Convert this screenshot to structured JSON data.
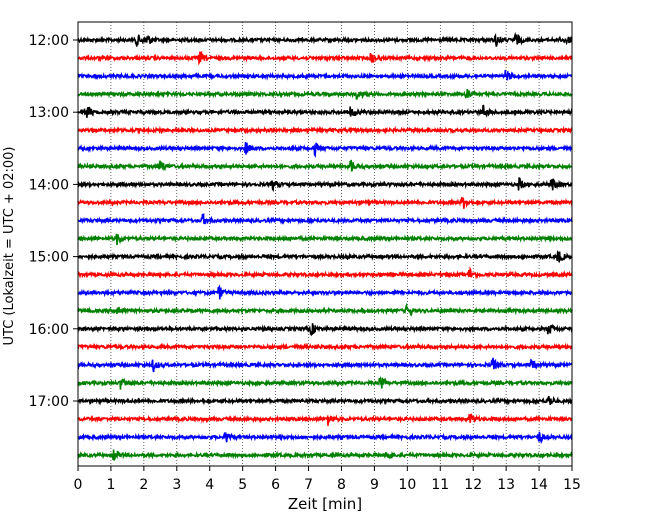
{
  "chart_data": {
    "type": "line",
    "title": "",
    "xlabel": "Zeit  [min]",
    "ylabel": "UTC (Lokalzeit = UTC + 02:00)",
    "xlim": [
      0,
      15
    ],
    "x_ticks": [
      0,
      1,
      2,
      3,
      4,
      5,
      6,
      7,
      8,
      9,
      10,
      11,
      12,
      13,
      14,
      15
    ],
    "x_tick_labels": [
      "0",
      "1",
      "2",
      "3",
      "4",
      "5",
      "6",
      "7",
      "8",
      "9",
      "10",
      "11",
      "12",
      "13",
      "14",
      "15"
    ],
    "y_tick_labels": [
      "12:00",
      "13:00",
      "14:00",
      "15:00",
      "16:00",
      "17:00"
    ],
    "grid": "vertical dotted",
    "legend": "none",
    "trace_interval_minutes": 15,
    "trace_colors": [
      "#000000",
      "#ff0000",
      "#0000ff",
      "#008000"
    ],
    "series": [
      {
        "start": "12:00",
        "color": "#000000",
        "events": [
          1.8,
          2.1,
          12.7,
          13.3,
          14.8
        ]
      },
      {
        "start": "12:15",
        "color": "#ff0000",
        "events": [
          3.7,
          8.9
        ]
      },
      {
        "start": "12:30",
        "color": "#0000ff",
        "events": [
          13.0
        ]
      },
      {
        "start": "12:45",
        "color": "#008000",
        "events": [
          8.5,
          11.8
        ]
      },
      {
        "start": "13:00",
        "color": "#000000",
        "events": [
          0.3,
          8.3,
          12.3
        ]
      },
      {
        "start": "13:15",
        "color": "#ff0000",
        "events": []
      },
      {
        "start": "13:30",
        "color": "#0000ff",
        "events": [
          5.1,
          7.2
        ]
      },
      {
        "start": "13:45",
        "color": "#008000",
        "events": [
          2.5,
          8.3
        ]
      },
      {
        "start": "14:00",
        "color": "#000000",
        "events": [
          5.9,
          13.4,
          14.4
        ]
      },
      {
        "start": "14:15",
        "color": "#ff0000",
        "events": [
          11.7
        ]
      },
      {
        "start": "14:30",
        "color": "#0000ff",
        "events": [
          3.8
        ]
      },
      {
        "start": "14:45",
        "color": "#008000",
        "events": [
          1.2
        ]
      },
      {
        "start": "15:00",
        "color": "#000000",
        "events": [
          14.6
        ]
      },
      {
        "start": "15:15",
        "color": "#ff0000",
        "events": [
          11.9
        ]
      },
      {
        "start": "15:30",
        "color": "#0000ff",
        "events": [
          4.3
        ]
      },
      {
        "start": "15:45",
        "color": "#008000",
        "events": [
          1.2,
          10.0
        ]
      },
      {
        "start": "16:00",
        "color": "#000000",
        "events": [
          7.1,
          14.3
        ]
      },
      {
        "start": "16:15",
        "color": "#ff0000",
        "events": []
      },
      {
        "start": "16:30",
        "color": "#0000ff",
        "events": [
          2.3,
          12.6,
          13.8
        ]
      },
      {
        "start": "16:45",
        "color": "#008000",
        "events": [
          1.3,
          9.2
        ]
      },
      {
        "start": "17:00",
        "color": "#000000",
        "events": [
          14.3
        ]
      },
      {
        "start": "17:15",
        "color": "#ff0000",
        "events": [
          7.6,
          11.9
        ]
      },
      {
        "start": "17:30",
        "color": "#0000ff",
        "events": [
          4.5,
          14.0
        ]
      },
      {
        "start": "17:45",
        "color": "#008000",
        "events": [
          1.1,
          9.4
        ]
      }
    ]
  }
}
